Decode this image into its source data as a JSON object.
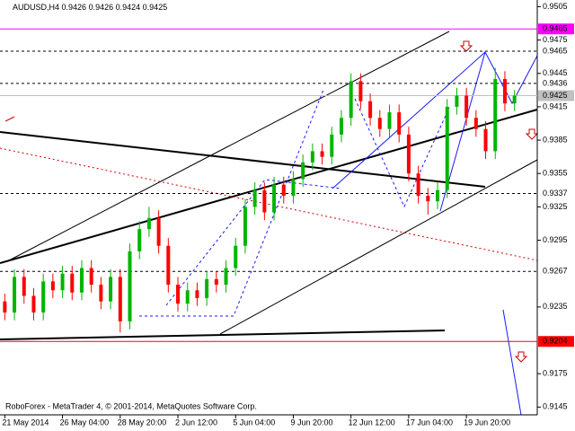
{
  "chart_data": {
    "type": "candlestick",
    "symbol": "AUDUSD,H4",
    "quote": [
      0.9426,
      0.9426,
      0.9424,
      0.9425
    ],
    "footer": "RoboForex - MetaTrader 4, © 2001-2014, MetaQuotes Software Corp.",
    "up_color": "#00b400",
    "down_color": "#ff0000",
    "categories": [
      "21 May 2014",
      null,
      null,
      null,
      null,
      null,
      "26 May 04:00",
      null,
      null,
      null,
      null,
      null,
      "28 May 20:00",
      null,
      null,
      null,
      null,
      null,
      "2 Jun 12:00",
      null,
      null,
      null,
      null,
      null,
      "5 Jun 04:00",
      null,
      null,
      null,
      null,
      null,
      "9 Jun 20:00",
      null,
      null,
      null,
      null,
      null,
      "12 Jun 12:00",
      null,
      null,
      null,
      null,
      null,
      "17 Jun 04:00",
      null,
      null,
      null,
      null,
      null,
      "19 Jun 20:00",
      null,
      null,
      null,
      null,
      null
    ],
    "open": [
      0.924,
      0.923,
      0.9262,
      0.9245,
      0.923,
      0.9258,
      0.925,
      0.9265,
      0.9248,
      0.927,
      0.9255,
      0.924,
      0.9262,
      0.9222,
      0.9285,
      0.9305,
      0.9315,
      0.929,
      0.9255,
      0.9238,
      0.925,
      0.9243,
      0.926,
      0.9255,
      0.927,
      0.929,
      0.9325,
      0.934,
      0.932,
      0.9345,
      0.9335,
      0.935,
      0.9365,
      0.9375,
      0.937,
      0.939,
      0.9405,
      0.9438,
      0.942,
      0.9405,
      0.9395,
      0.941,
      0.939,
      0.9355,
      0.9335,
      0.933,
      0.934,
      0.9415,
      0.9425,
      0.9405,
      0.9395,
      0.9375,
      0.944,
      0.9418
    ],
    "high": [
      0.9247,
      0.9269,
      0.9269,
      0.9252,
      0.9265,
      0.9265,
      0.9272,
      0.9272,
      0.9277,
      0.9277,
      0.9262,
      0.9269,
      0.9269,
      0.9292,
      0.9312,
      0.9325,
      0.9322,
      0.9297,
      0.9262,
      0.9257,
      0.9257,
      0.9267,
      0.9267,
      0.9277,
      0.9297,
      0.9332,
      0.9347,
      0.9347,
      0.9352,
      0.9352,
      0.9357,
      0.9372,
      0.9382,
      0.9382,
      0.9397,
      0.9412,
      0.9445,
      0.9445,
      0.9427,
      0.9412,
      0.9417,
      0.9417,
      0.9397,
      0.9362,
      0.9342,
      0.9347,
      0.9422,
      0.9432,
      0.9432,
      0.9412,
      0.9402,
      0.945,
      0.9447,
      0.943
    ],
    "low": [
      0.9223,
      0.9223,
      0.9238,
      0.9223,
      0.9223,
      0.9243,
      0.9243,
      0.9241,
      0.9241,
      0.9248,
      0.9233,
      0.9233,
      0.9212,
      0.9215,
      0.9278,
      0.9298,
      0.9283,
      0.9248,
      0.9231,
      0.9231,
      0.9236,
      0.9236,
      0.9248,
      0.9248,
      0.9263,
      0.9283,
      0.9318,
      0.9313,
      0.9313,
      0.9328,
      0.9328,
      0.9343,
      0.9358,
      0.9363,
      0.9363,
      0.9383,
      0.9398,
      0.9413,
      0.9398,
      0.9388,
      0.9388,
      0.9383,
      0.9348,
      0.9328,
      0.9318,
      0.9323,
      0.9333,
      0.9408,
      0.9398,
      0.9388,
      0.9368,
      0.9368,
      0.9411,
      0.9411
    ],
    "close": [
      0.923,
      0.9262,
      0.9245,
      0.923,
      0.9258,
      0.925,
      0.9265,
      0.9248,
      0.927,
      0.9255,
      0.924,
      0.9262,
      0.9222,
      0.9285,
      0.9305,
      0.9315,
      0.929,
      0.9255,
      0.9238,
      0.925,
      0.9243,
      0.926,
      0.9255,
      0.927,
      0.929,
      0.9325,
      0.934,
      0.932,
      0.9345,
      0.9335,
      0.935,
      0.9365,
      0.9375,
      0.937,
      0.939,
      0.9405,
      0.9438,
      0.942,
      0.9405,
      0.9395,
      0.941,
      0.939,
      0.9355,
      0.9335,
      0.933,
      0.934,
      0.9415,
      0.9425,
      0.9405,
      0.9395,
      0.9375,
      0.944,
      0.9418,
      0.9425
    ],
    "ylim": [
      0.9138,
      0.9511
    ],
    "yticks": [
      0.9505,
      0.9475,
      0.9445,
      0.9415,
      0.9385,
      0.9355,
      0.9325,
      0.9295,
      0.9235,
      0.9175,
      0.9145
    ],
    "levels": [
      {
        "value": 0.9485,
        "color": "#ff00ff",
        "label_color": "#ffffff",
        "style": "solid"
      },
      {
        "value": 0.9465,
        "color": "#000000",
        "label_color": "#000000",
        "style": "dashed"
      },
      {
        "value": 0.9436,
        "color": "#000000",
        "label_color": "#000000",
        "style": "dashed"
      },
      {
        "value": 0.9425,
        "color": "#c0c0c0",
        "label_color": "#000000",
        "style": "solid"
      },
      {
        "value": 0.9337,
        "color": "#000000",
        "label_color": "#000000",
        "style": "dashed"
      },
      {
        "value": 0.9267,
        "color": "#000000",
        "label_color": "#000000",
        "style": "dashed"
      },
      {
        "value": 0.9204,
        "color": "#ff0000",
        "label_color": "#ffffff",
        "style": "solid"
      }
    ]
  }
}
